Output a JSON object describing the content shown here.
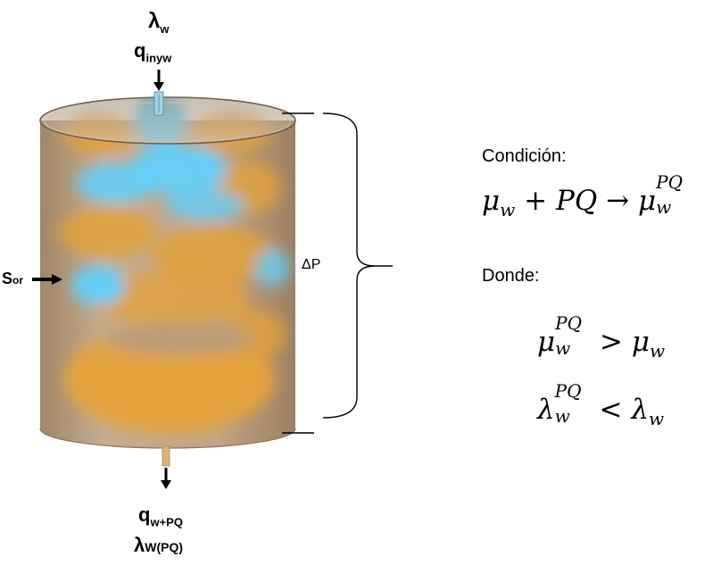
{
  "top": {
    "lambda_symbol": "λ",
    "lambda_sub": "w",
    "q_symbol": "q",
    "q_sub": "inyw"
  },
  "left": {
    "s_main": "S",
    "s_sub": "or"
  },
  "bottom": {
    "q_symbol": "q",
    "q_sub": "w+PQ",
    "lambda_symbol": "λ",
    "lambda_sub": "W(PQ)"
  },
  "pressure_label": "ΔP",
  "right_panel": {
    "condition_label": "Condición:",
    "where_label": "Donde:",
    "eq1": {
      "mu": "μ",
      "sub": "w",
      "plus": "+",
      "pq": "PQ",
      "arrow": "→",
      "mu2": "μ",
      "sub2": "w",
      "sup2": "PQ"
    },
    "eq2": {
      "mu": "μ",
      "sub": "w",
      "sup": "PQ",
      "op": ">",
      "mu_r": "μ",
      "sub_r": "w"
    },
    "eq3": {
      "lam": "λ",
      "sub": "w",
      "sup": "PQ",
      "op": "<",
      "lam_r": "λ",
      "sub_r": "w"
    }
  },
  "colors": {
    "water": "#5fd0ff",
    "oil": "#e3a03b",
    "rock": "#b69b7b",
    "outline": "#000000"
  }
}
